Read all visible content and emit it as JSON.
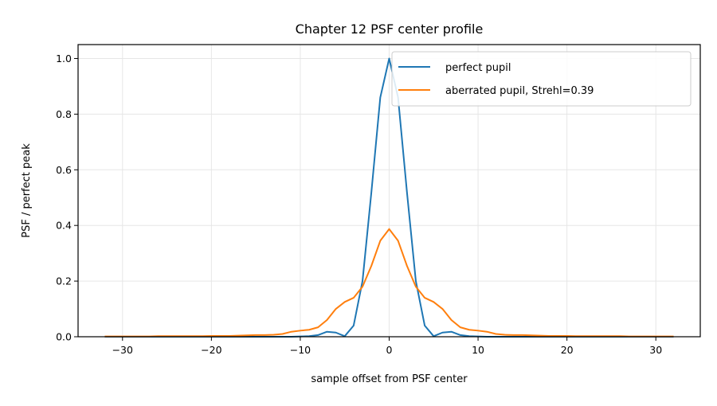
{
  "chart_data": {
    "type": "line",
    "title": "Chapter 12 PSF center profile",
    "xlabel": "sample offset from PSF center",
    "ylabel": "PSF / perfect peak",
    "xlim": [
      -35,
      35
    ],
    "ylim": [
      0,
      1.05
    ],
    "xticks": [
      -30,
      -20,
      -10,
      0,
      10,
      20,
      30
    ],
    "xtick_labels": [
      "−30",
      "−20",
      "−10",
      "0",
      "10",
      "20",
      "30"
    ],
    "yticks": [
      0.0,
      0.2,
      0.4,
      0.6,
      0.8,
      1.0
    ],
    "ytick_labels": [
      "0.0",
      "0.2",
      "0.4",
      "0.6",
      "0.8",
      "1.0"
    ],
    "grid": true,
    "legend_position": "top-right",
    "x": [
      -32,
      -31,
      -30,
      -29,
      -28,
      -27,
      -26,
      -25,
      -24,
      -23,
      -22,
      -21,
      -20,
      -19,
      -18,
      -17,
      -16,
      -15,
      -14,
      -13,
      -12,
      -11,
      -10,
      -9,
      -8,
      -7,
      -6,
      -5,
      -4,
      -3,
      -2,
      -1,
      0,
      1,
      2,
      3,
      4,
      5,
      6,
      7,
      8,
      9,
      10,
      11,
      12,
      13,
      14,
      15,
      16,
      17,
      18,
      19,
      20,
      21,
      22,
      23,
      24,
      25,
      26,
      27,
      28,
      29,
      30,
      31,
      32
    ],
    "series": [
      {
        "name": "perfect pupil",
        "color": "#1f77b4",
        "values": [
          0,
          0,
          0,
          0,
          0,
          0,
          0,
          0,
          0,
          0,
          0,
          0,
          0,
          0,
          0,
          0,
          0,
          0,
          0,
          0,
          0,
          0,
          0.001,
          0.002,
          0.006,
          0.018,
          0.015,
          0.002,
          0.04,
          0.2,
          0.52,
          0.86,
          1.0,
          0.86,
          0.52,
          0.2,
          0.04,
          0.002,
          0.015,
          0.018,
          0.006,
          0.002,
          0.001,
          0,
          0,
          0,
          0,
          0,
          0,
          0,
          0,
          0,
          0,
          0,
          0,
          0,
          0,
          0,
          0,
          0,
          0,
          0,
          0,
          0,
          0
        ]
      },
      {
        "name": "aberrated pupil, Strehl=0.39",
        "color": "#ff7f0e",
        "values": [
          0.001,
          0.001,
          0.001,
          0.001,
          0.001,
          0.001,
          0.002,
          0.002,
          0.002,
          0.002,
          0.002,
          0.002,
          0.003,
          0.003,
          0.003,
          0.004,
          0.005,
          0.006,
          0.006,
          0.007,
          0.01,
          0.018,
          0.022,
          0.025,
          0.034,
          0.06,
          0.1,
          0.125,
          0.14,
          0.18,
          0.255,
          0.345,
          0.387,
          0.345,
          0.255,
          0.18,
          0.14,
          0.125,
          0.1,
          0.06,
          0.034,
          0.025,
          0.022,
          0.018,
          0.01,
          0.007,
          0.006,
          0.006,
          0.005,
          0.004,
          0.003,
          0.003,
          0.003,
          0.002,
          0.002,
          0.002,
          0.002,
          0.002,
          0.002,
          0.001,
          0.001,
          0.001,
          0.001,
          0.001,
          0.001
        ]
      }
    ]
  }
}
